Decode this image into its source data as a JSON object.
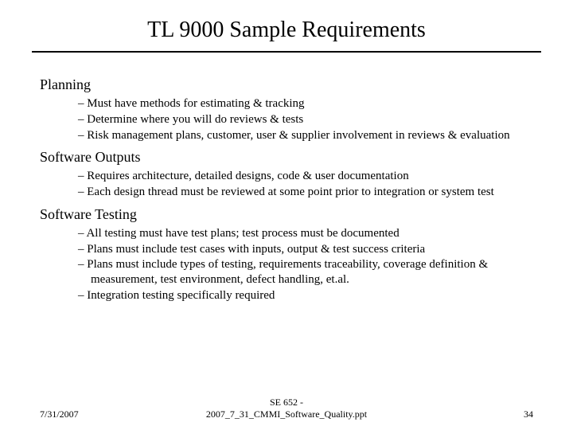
{
  "title": "TL 9000 Sample Requirements",
  "sections": [
    {
      "heading": "Planning",
      "items": [
        "Must have methods for estimating & tracking",
        "Determine where you will do reviews & tests",
        "Risk management plans, customer, user & supplier involvement in reviews & evaluation"
      ]
    },
    {
      "heading": "Software Outputs",
      "items": [
        "Requires architecture, detailed designs, code & user documentation",
        "Each design thread must be reviewed at some point prior to integration or system test"
      ]
    },
    {
      "heading": "Software Testing",
      "items": [
        "All testing must have test plans; test process must be documented",
        "Plans must include test cases with inputs, output & test success criteria",
        "Plans must include types of testing, requirements traceability, coverage definition & measurement, test environment, defect handling, et.al.",
        "Integration testing specifically required"
      ]
    }
  ],
  "footer": {
    "date": "7/31/2007",
    "center_line1": "SE 652 -",
    "center_line2": "2007_7_31_CMMI_Software_Quality.ppt",
    "page": "34"
  },
  "style": {
    "background_color": "#ffffff",
    "text_color": "#000000",
    "rule_color": "#000000",
    "title_fontsize": 28,
    "heading_fontsize": 18,
    "body_fontsize": 15,
    "footer_fontsize": 12,
    "font_family": "Times New Roman"
  }
}
